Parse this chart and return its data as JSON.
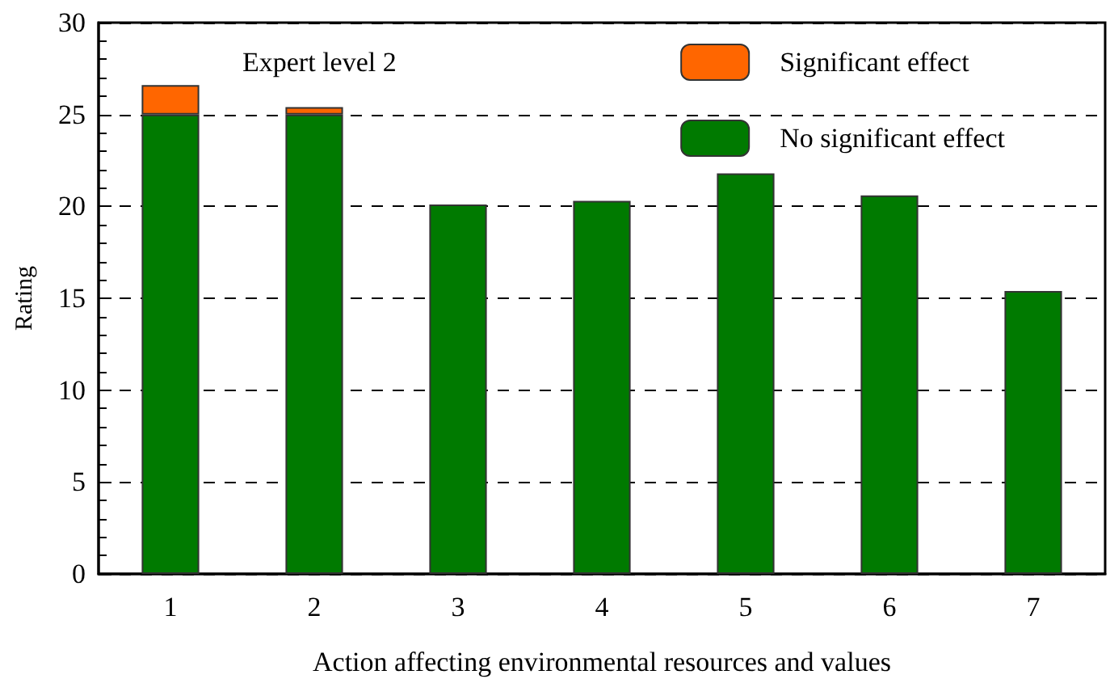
{
  "chart_data": {
    "type": "bar",
    "stacked": true,
    "xlabel": "Action affecting environmental resources and values",
    "ylabel": "Rating",
    "annotations": [
      "Expert level 2"
    ],
    "categories": [
      "1",
      "2",
      "3",
      "4",
      "5",
      "6",
      "7"
    ],
    "series": [
      {
        "name": "No significant effect",
        "color": "#007a00",
        "values": [
          25,
          25,
          20.1,
          20.3,
          21.8,
          20.6,
          15.4
        ]
      },
      {
        "name": "Significant effect",
        "color": "#ff6600",
        "values": [
          1.6,
          0.4,
          null,
          null,
          null,
          null,
          null
        ]
      }
    ],
    "ylim": [
      0,
      30
    ],
    "yticks": [
      0,
      5,
      10,
      15,
      20,
      25,
      30
    ],
    "grid": "y",
    "legend": "top right"
  }
}
